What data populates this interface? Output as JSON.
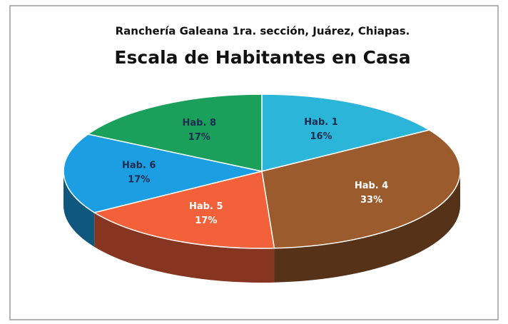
{
  "chart_data": {
    "type": "pie",
    "subtitle": "Ranchería Galeana 1ra. sección, Juárez, Chiapas.",
    "title": "Escala de Habitantes en Casa",
    "categories": [
      "Hab. 1",
      "Hab. 4",
      "Hab. 5",
      "Hab. 6",
      "Hab. 8"
    ],
    "values": [
      16,
      33,
      17,
      17,
      17
    ],
    "value_labels": [
      "16%",
      "33%",
      "17%",
      "17%",
      "17%"
    ],
    "colors": [
      "#2bb6d9",
      "#9c5b2c",
      "#f2613a",
      "#1b9fe2",
      "#1aa05b"
    ],
    "label_colors": [
      "#1d2b4f",
      "#ffffff",
      "#ffffff",
      "#1d2b4f",
      "#1d2b4f"
    ]
  }
}
